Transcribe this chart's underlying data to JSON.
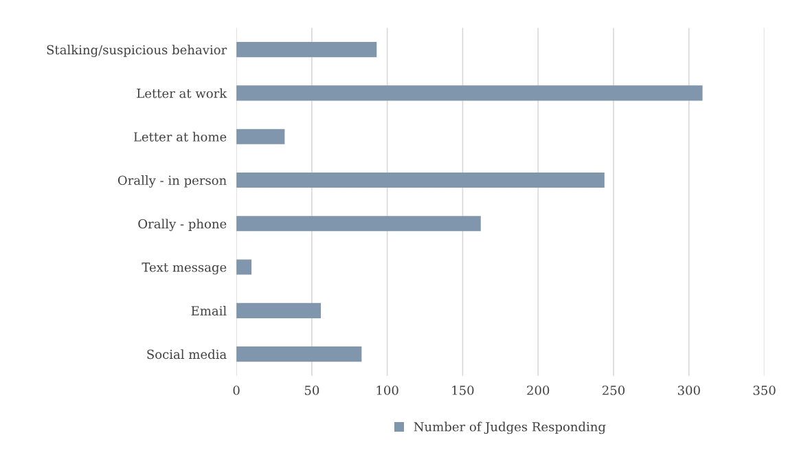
{
  "chart_data": {
    "type": "bar",
    "orientation": "horizontal",
    "categories": [
      "Stalking/suspicious behavior",
      "Letter at work",
      "Letter at home",
      "Orally - in person",
      "Orally - phone",
      "Text message",
      "Email",
      "Social media"
    ],
    "series": [
      {
        "name": "Number of Judges Responding",
        "color": "#7f96ad",
        "values": [
          93,
          309,
          32,
          244,
          162,
          10,
          56,
          83
        ]
      }
    ],
    "xlim": [
      0,
      350
    ],
    "xticks": [
      0,
      50,
      100,
      150,
      200,
      250,
      300,
      350
    ],
    "grid": "x",
    "legend": "bottom"
  }
}
